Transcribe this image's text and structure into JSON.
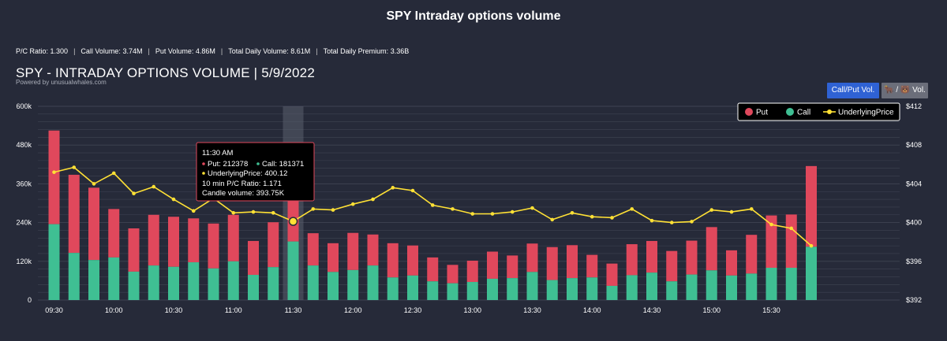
{
  "page": {
    "title": "SPY Intraday options volume"
  },
  "stats": [
    {
      "label": "P/C Ratio:",
      "value": "1.300"
    },
    {
      "label": "Call Volume:",
      "value": "3.74M"
    },
    {
      "label": "Put Volume:",
      "value": "4.86M"
    },
    {
      "label": "Total Daily Volume:",
      "value": "8.61M"
    },
    {
      "label": "Total Daily Premium:",
      "value": "3.36B"
    }
  ],
  "buttons": {
    "call_put": "Call/Put Vol.",
    "bull_bear": "🐂 / 🐻 Vol."
  },
  "colors": {
    "put": "#e0485c",
    "call": "#3fbf93",
    "line": "#ffe135",
    "grid": "#3f4352",
    "highlight": "#5a5f6e"
  },
  "chart_data": {
    "type": "bar",
    "title": "SPY - INTRADAY OPTIONS VOLUME | 5/9/2022",
    "subtitle": "Powered by unusualwhales.com",
    "x_labels": [
      "09:30",
      "10:00",
      "10:30",
      "11:00",
      "11:30",
      "12:00",
      "12:30",
      "13:00",
      "13:30",
      "14:00",
      "14:30",
      "15:00",
      "15:30"
    ],
    "y_left": {
      "min": 0,
      "max": 600000,
      "ticks": [
        "0",
        "120k",
        "240k",
        "360k",
        "480k",
        "600k"
      ]
    },
    "y_right": {
      "min": 392,
      "max": 412,
      "ticks": [
        "$392",
        "$396",
        "$400",
        "$404",
        "$408",
        "$412"
      ]
    },
    "legend": {
      "position": "top-right",
      "items": [
        "Put",
        "Call",
        "UnderlyingPrice"
      ]
    },
    "series": [
      {
        "name": "Call",
        "values": [
          235000,
          146000,
          124000,
          132000,
          88000,
          107000,
          103000,
          117000,
          98000,
          120000,
          78000,
          102000,
          181371,
          107000,
          87000,
          93000,
          107000,
          70000,
          76000,
          58000,
          52000,
          56000,
          66000,
          68000,
          87000,
          62000,
          68000,
          70000,
          44000,
          77000,
          85000,
          58000,
          79000,
          92000,
          76000,
          82000,
          100000,
          100000,
          165000
        ]
      },
      {
        "name": "Put",
        "values": [
          290000,
          242000,
          224000,
          150000,
          134000,
          157000,
          155000,
          136000,
          139000,
          144000,
          105000,
          139000,
          212378,
          100000,
          89000,
          115000,
          96000,
          106000,
          93000,
          74000,
          57000,
          66000,
          84000,
          70000,
          88000,
          102000,
          102000,
          70000,
          69000,
          96000,
          98000,
          94000,
          105000,
          134000,
          78000,
          120000,
          162000,
          165000,
          250000
        ]
      },
      {
        "name": "UnderlyingPrice",
        "values": [
          405.2,
          405.7,
          404.0,
          405.1,
          403.0,
          403.7,
          402.4,
          401.2,
          402.5,
          401.0,
          401.1,
          401.0,
          400.12,
          401.4,
          401.3,
          401.9,
          402.4,
          403.6,
          403.3,
          401.8,
          401.4,
          400.9,
          400.9,
          401.1,
          401.5,
          400.3,
          401.0,
          400.6,
          400.5,
          401.4,
          400.2,
          400.0,
          400.1,
          401.3,
          401.1,
          401.4,
          399.8,
          399.4,
          397.6
        ]
      }
    ],
    "tooltip": {
      "time": "11:30 AM",
      "put": "Put: 212378",
      "call": "Call: 181371",
      "price": "UnderlyingPrice: 400.12",
      "pc_ratio": "10 min P/C Ratio: 1.171",
      "candle": "Candle volume: 393.75K"
    }
  }
}
